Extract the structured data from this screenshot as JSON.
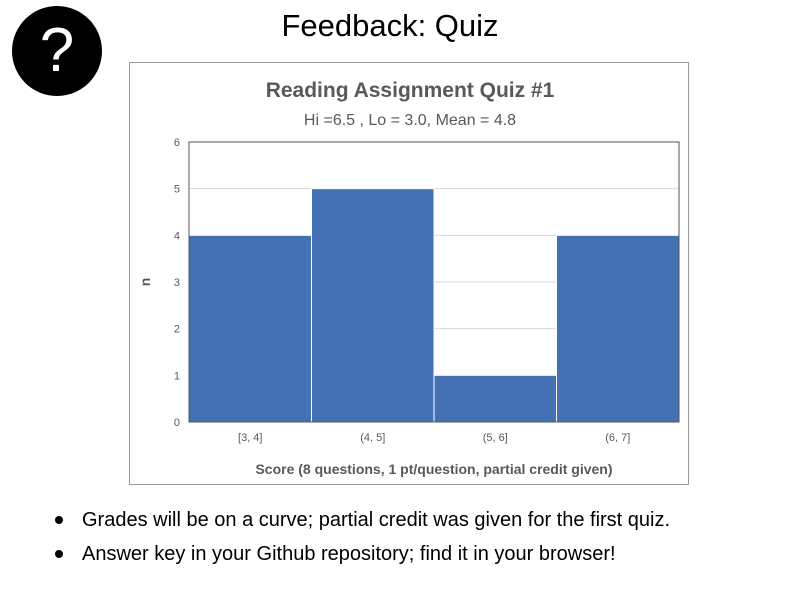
{
  "slide": {
    "title": "Feedback: Quiz",
    "icon": "question-mark-icon",
    "icon_glyph": "?",
    "bullets": [
      "Grades will be on a curve; partial credit was given for the first quiz.",
      "Answer key in your Github repository; find it in your browser!"
    ]
  },
  "chart_data": {
    "type": "bar",
    "title": "Reading Assignment Quiz #1",
    "subtitle": "Hi =6.5 , Lo = 3.0, Mean = 4.8",
    "xlabel": "Score (8 questions, 1 pt/question, partial credit given)",
    "ylabel": "n",
    "categories": [
      "[3, 4]",
      "(4, 5]",
      "(5, 6]",
      "(6, 7]"
    ],
    "values": [
      4,
      5,
      1,
      4
    ],
    "ylim": [
      0,
      6
    ],
    "yticks": [
      0,
      1,
      2,
      3,
      4,
      5,
      6
    ],
    "grid": true,
    "legend": "none",
    "colors": {
      "bar": "#4470B4",
      "grid": "#d9d9d9",
      "text": "#595959"
    }
  }
}
